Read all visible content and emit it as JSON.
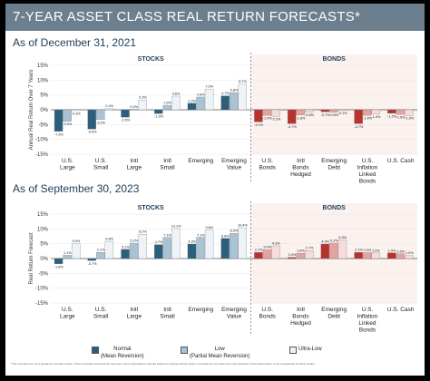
{
  "header": {
    "title": "7-YEAR ASSET CLASS REAL RETURN FORECASTS*"
  },
  "colors": {
    "normal": "#2c5f7c",
    "low": "#a9c2d4",
    "ultra_low": "#eef3f7",
    "bond_normal": "#b8322e",
    "bond_low": "#e5a3a0",
    "bond_ultra_low": "#f6dcda",
    "bond_band": "#f2d2cd",
    "gridline": "#e6e6e6",
    "title_bar": "#6b7f8e"
  },
  "chart_data": [
    {
      "type": "bar",
      "subtitle": "As of December 31, 2021",
      "ylabel": "Annual Real Return Over 7 Years",
      "ylim": [
        -15,
        15
      ],
      "yticks": [
        "15%",
        "10%",
        "5%",
        "0%",
        "-5%",
        "-10%",
        "-15%"
      ],
      "group_labels": [
        "STOCKS",
        "BONDS"
      ],
      "categories": [
        "U.S. Large",
        "U.S. Small",
        "Intl Large",
        "Intl Small",
        "Emerging",
        "Emerging Value",
        "U.S. Bonds",
        "Intl Bonds Hedged",
        "Emerging Debt",
        "U.S. Inflation Linked Bonds",
        "U.S. Cash"
      ],
      "series": [
        {
          "name": "Normal (Mean Reversion)",
          "values": [
            -7.3,
            -6.5,
            -2.5,
            -1.3,
            2.2,
            4.7,
            -4.1,
            -4.7,
            -0.7,
            -4.7,
            -1.2
          ],
          "labels": [
            "-7.3%",
            "-6.5%",
            "-2.5%",
            "-1.3%",
            "2.2%",
            "4.7%",
            "-4.1%",
            "-4.7%",
            "-0.7%",
            "-4.7%",
            "-1.2%"
          ]
        },
        {
          "name": "Low (Partial Mean Reversion)",
          "values": [
            -3.9,
            -3.3,
            0.2,
            1.5,
            4.3,
            5.8,
            -1.9,
            -1.8,
            -0.8,
            -1.9,
            -1.6
          ],
          "labels": [
            "-3.9%",
            "-3.3%",
            "0.2%",
            "1.5%",
            "4.3%",
            "5.8%",
            "-1.9%",
            "-1.8%",
            "-0.8%",
            "-1.9%",
            "-1.6%"
          ]
        },
        {
          "name": "Ultra-Low",
          "values": [
            -0.3,
            0.4,
            3.3,
            4.6,
            7.0,
            8.7,
            -2.2,
            -0.8,
            -0.1,
            -1.4,
            -1.9
          ],
          "labels": [
            "-0.3%",
            "0.4%",
            "3.3%",
            "4.6%",
            "7.0%",
            "8.7%",
            "-2.2%",
            "-0.8%",
            "-0.1%",
            "-1.4%",
            "-1.9%"
          ]
        }
      ]
    },
    {
      "type": "bar",
      "subtitle": "As of September 30, 2023",
      "ylabel": "Real Return Forecast",
      "ylim": [
        -15,
        15
      ],
      "yticks": [
        "15%",
        "10%",
        "5%",
        "0%",
        "-5%",
        "-10%",
        "-15%"
      ],
      "group_labels": [
        "STOCKS",
        "BONDS"
      ],
      "categories": [
        "U.S. Large",
        "U.S. Small",
        "Intl Large",
        "Intl Small",
        "Emerging",
        "Emerging Value",
        "U.S. Bonds",
        "Intl Bonds Hedged",
        "Emerging Debt",
        "U.S. Inflation Linked Bonds",
        "U.S. Cash"
      ],
      "series": [
        {
          "name": "Normal (Mean Reversion)",
          "values": [
            -1.8,
            -0.7,
            3.1,
            4.7,
            4.9,
            6.8,
            2.1,
            0.4,
            4.9,
            2.1,
            1.9
          ],
          "labels": [
            "-1.8%",
            "-0.7%",
            "3.1%",
            "4.7%",
            "4.9%",
            "6.8%",
            "2.1%",
            "0.4%",
            "4.9%",
            "2.1%",
            "1.9%"
          ]
        },
        {
          "name": "Low (Partial Mean Reversion)",
          "values": [
            1.1,
            2.1,
            5.2,
            7.1,
            7.1,
            8.5,
            3.0,
            1.8,
            5.2,
            2.0,
            1.6
          ],
          "labels": [
            "1.1%",
            "2.1%",
            "5.2%",
            "7.1%",
            "7.1%",
            "8.5%",
            "3.0%",
            "1.8%",
            "5.2%",
            "2.0%",
            "1.6%"
          ]
        },
        {
          "name": "Ultra-Low",
          "values": [
            5.0,
            5.8,
            8.2,
            10.1,
            9.6,
            10.4,
            4.3,
            2.7,
            6.3,
            1.9,
            1.0
          ],
          "labels": [
            "5.0%",
            "5.8%",
            "8.2%",
            "10.1%",
            "9.6%",
            "10.4%",
            "4.3%",
            "2.7%",
            "6.3%",
            "1.9%",
            "1.0%"
          ]
        }
      ]
    }
  ],
  "legend": {
    "normal_label": "Normal",
    "normal_sub": "(Mean Reversion)",
    "low_label": "Low",
    "low_sub": "(Partial Mean Reversion)",
    "ultra_label": "Ultra-Low"
  },
  "footnote": "*The forecasts are not a guarantee of future results. These forecasts represent the long-term return expectations and are subject to change without notice. Forecasts do not reflect fees and expenses. Past performance is not a guarantee of future results."
}
